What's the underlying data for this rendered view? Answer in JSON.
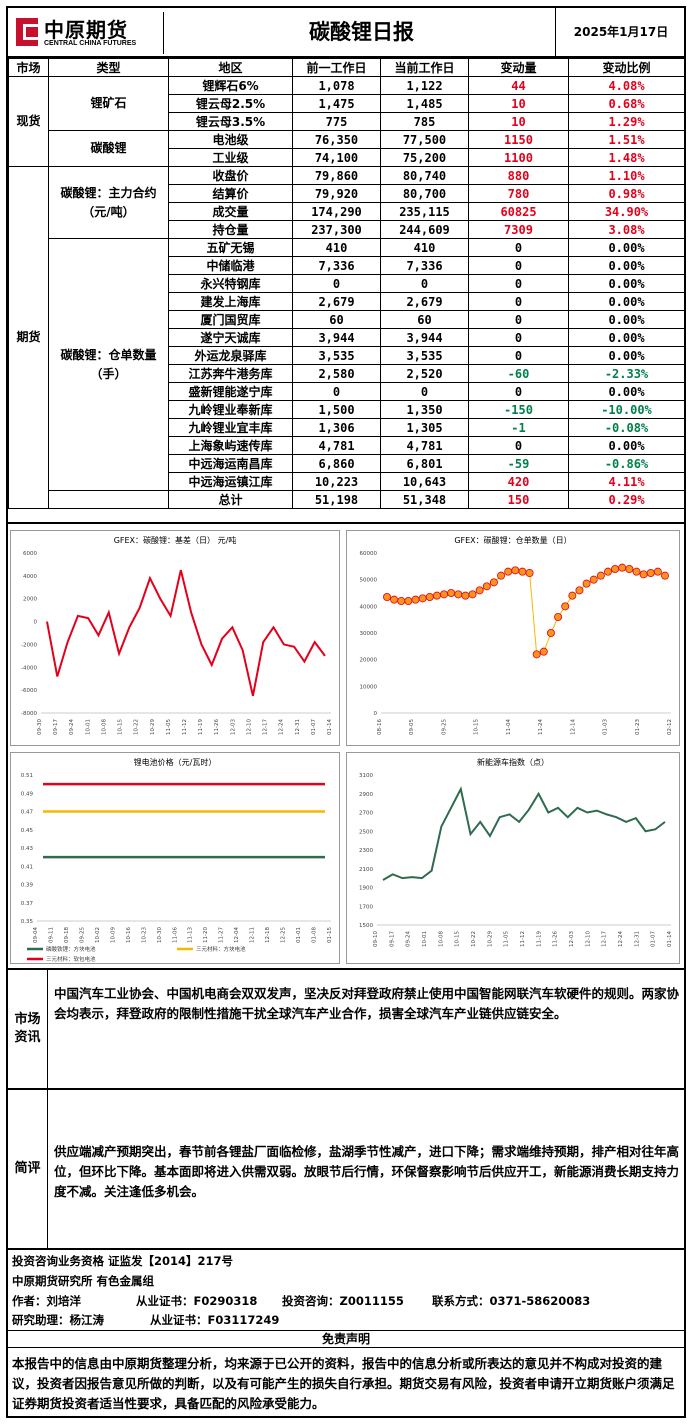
{
  "header": {
    "logo_cn": "中原期货",
    "logo_en": "CENTRAL CHINA FUTURES",
    "title": "碳酸锂日报",
    "date": "2025年1月17日"
  },
  "table": {
    "columns": [
      "市场",
      "类型",
      "地区",
      "前一工作日",
      "当前工作日",
      "变动量",
      "变动比例"
    ],
    "markets": {
      "spot": "现货",
      "futures": "期货"
    },
    "groups": {
      "ore": "锂矿石",
      "carbonate": "碳酸锂",
      "main_contract": "碳酸锂：主力合约（元/吨）",
      "warehouse": "碳酸锂：仓单数量（手）"
    },
    "rows": [
      {
        "loc": "锂辉石6%",
        "prev": "1,078",
        "curr": "1,122",
        "chg": "44",
        "pct": "4.08%",
        "dir": "up"
      },
      {
        "loc": "锂云母2.5%",
        "prev": "1,475",
        "curr": "1,485",
        "chg": "10",
        "pct": "0.68%",
        "dir": "up"
      },
      {
        "loc": "锂云母3.5%",
        "prev": "775",
        "curr": "785",
        "chg": "10",
        "pct": "1.29%",
        "dir": "up"
      },
      {
        "loc": "电池级",
        "prev": "76,350",
        "curr": "77,500",
        "chg": "1150",
        "pct": "1.51%",
        "dir": "up"
      },
      {
        "loc": "工业级",
        "prev": "74,100",
        "curr": "75,200",
        "chg": "1100",
        "pct": "1.48%",
        "dir": "up"
      },
      {
        "loc": "收盘价",
        "prev": "79,860",
        "curr": "80,740",
        "chg": "880",
        "pct": "1.10%",
        "dir": "up"
      },
      {
        "loc": "结算价",
        "prev": "79,920",
        "curr": "80,700",
        "chg": "780",
        "pct": "0.98%",
        "dir": "up"
      },
      {
        "loc": "成交量",
        "prev": "174,290",
        "curr": "235,115",
        "chg": "60825",
        "pct": "34.90%",
        "dir": "up"
      },
      {
        "loc": "持仓量",
        "prev": "237,300",
        "curr": "244,609",
        "chg": "7309",
        "pct": "3.08%",
        "dir": "up"
      },
      {
        "loc": "五矿无锡",
        "prev": "410",
        "curr": "410",
        "chg": "0",
        "pct": "0.00%",
        "dir": "flat"
      },
      {
        "loc": "中储临港",
        "prev": "7,336",
        "curr": "7,336",
        "chg": "0",
        "pct": "0.00%",
        "dir": "flat"
      },
      {
        "loc": "永兴特钢库",
        "prev": "0",
        "curr": "0",
        "chg": "0",
        "pct": "0.00%",
        "dir": "flat"
      },
      {
        "loc": "建发上海库",
        "prev": "2,679",
        "curr": "2,679",
        "chg": "0",
        "pct": "0.00%",
        "dir": "flat"
      },
      {
        "loc": "厦门国贸库",
        "prev": "60",
        "curr": "60",
        "chg": "0",
        "pct": "0.00%",
        "dir": "flat"
      },
      {
        "loc": "遂宁天诚库",
        "prev": "3,944",
        "curr": "3,944",
        "chg": "0",
        "pct": "0.00%",
        "dir": "flat"
      },
      {
        "loc": "外运龙泉驿库",
        "prev": "3,535",
        "curr": "3,535",
        "chg": "0",
        "pct": "0.00%",
        "dir": "flat"
      },
      {
        "loc": "江苏奔牛港务库",
        "prev": "2,580",
        "curr": "2,520",
        "chg": "-60",
        "pct": "-2.33%",
        "dir": "down"
      },
      {
        "loc": "盛新锂能遂宁库",
        "prev": "0",
        "curr": "0",
        "chg": "0",
        "pct": "0.00%",
        "dir": "flat"
      },
      {
        "loc": "九岭锂业奉新库",
        "prev": "1,500",
        "curr": "1,350",
        "chg": "-150",
        "pct": "-10.00%",
        "dir": "down"
      },
      {
        "loc": "九岭锂业宜丰库",
        "prev": "1,306",
        "curr": "1,305",
        "chg": "-1",
        "pct": "-0.08%",
        "dir": "down"
      },
      {
        "loc": "上海象屿速传库",
        "prev": "4,781",
        "curr": "4,781",
        "chg": "0",
        "pct": "0.00%",
        "dir": "flat"
      },
      {
        "loc": "中远海运南昌库",
        "prev": "6,860",
        "curr": "6,801",
        "chg": "-59",
        "pct": "-0.86%",
        "dir": "down"
      },
      {
        "loc": "中远海运镇江库",
        "prev": "10,223",
        "curr": "10,643",
        "chg": "420",
        "pct": "4.11%",
        "dir": "up"
      },
      {
        "loc": "总计",
        "prev": "51,198",
        "curr": "51,348",
        "chg": "150",
        "pct": "0.29%",
        "dir": "up"
      }
    ]
  },
  "colors": {
    "up": "#e4001b",
    "down": "#00804a",
    "basis_line": "#e4001b",
    "receipt_marker": "#f7941d",
    "index_line": "#2e6b4f"
  },
  "chart_data": [
    {
      "type": "line",
      "title": "GFEX：碳酸锂：基差（日） 元/吨",
      "x": [
        "09-30",
        "10-04",
        "10-08",
        "10-12",
        "10-16",
        "10-20",
        "10-24",
        "10-28",
        "11-01",
        "11-05",
        "11-09",
        "11-13",
        "11-17",
        "11-21",
        "11-25",
        "11-29",
        "12-03",
        "12-07",
        "12-11",
        "12-15",
        "12-19",
        "12-23",
        "12-27",
        "12-31",
        "01-04",
        "01-08",
        "01-12",
        "01-15"
      ],
      "x_tick_labels": [
        "09-30",
        "09-17",
        "09-24",
        "10-01",
        "10-08",
        "10-15",
        "10-22",
        "10-29",
        "11-05",
        "11-12",
        "11-19",
        "11-26",
        "12-03",
        "12-10",
        "12-17",
        "12-24",
        "12-31",
        "01-07",
        "01-14"
      ],
      "series": [
        {
          "values": [
            0,
            -4800,
            -1800,
            500,
            300,
            -1200,
            800,
            -2800,
            -500,
            1200,
            3800,
            2000,
            500,
            4500,
            800,
            -2000,
            -3800,
            -1500,
            -500,
            -2500,
            -6500,
            -1800,
            -500,
            -2000,
            -2200,
            -3500,
            -1800,
            -3000
          ]
        }
      ],
      "ylim": [
        -8000,
        6000
      ],
      "yticks": [
        6000,
        4000,
        2000,
        0,
        -2000,
        -4000,
        -6000,
        -8000
      ],
      "grid": false,
      "legend": "none"
    },
    {
      "type": "scatter",
      "title": "GFEX：碳酸锂：仓单数量（日）",
      "x": [
        "09-06",
        "09-10",
        "09-14",
        "09-18",
        "09-22",
        "09-26",
        "09-30",
        "10-04",
        "10-08",
        "10-12",
        "10-16",
        "10-20",
        "10-24",
        "10-28",
        "11-01",
        "11-05",
        "11-09",
        "11-13",
        "11-17",
        "11-21",
        "11-25",
        "11-27",
        "11-29",
        "12-01",
        "12-03",
        "12-05",
        "12-08",
        "12-11",
        "12-14",
        "12-17",
        "12-20",
        "12-23",
        "12-26",
        "12-29",
        "01-01",
        "01-04",
        "01-07",
        "01-10",
        "01-13",
        "01-16"
      ],
      "x_tick_labels": [
        "08-16",
        "09-05",
        "09-25",
        "10-15",
        "11-04",
        "11-24",
        "12-14",
        "01-03",
        "01-23",
        "02-12"
      ],
      "series": [
        {
          "values": [
            43500,
            42500,
            42000,
            42000,
            42500,
            43000,
            43500,
            44000,
            44500,
            45000,
            44500,
            44000,
            44500,
            46000,
            47500,
            49000,
            51500,
            53000,
            53500,
            53000,
            52500,
            22000,
            23000,
            30000,
            36000,
            40000,
            44000,
            46000,
            48500,
            50000,
            51500,
            53000,
            54000,
            54500,
            54000,
            53000,
            52000,
            52500,
            53000,
            51500
          ]
        }
      ],
      "ylim": [
        0,
        60000
      ],
      "yticks": [
        60000,
        50000,
        40000,
        30000,
        20000,
        10000,
        0
      ],
      "grid": false,
      "legend": "none"
    },
    {
      "type": "line",
      "title": "锂电池价格（元/瓦时）",
      "x_tick_labels": [
        "09-04",
        "09-11",
        "09-18",
        "09-25",
        "10-02",
        "10-09",
        "10-16",
        "10-23",
        "10-30",
        "11-06",
        "11-13",
        "11-20",
        "11-27",
        "12-04",
        "12-11",
        "12-18",
        "12-25",
        "01-01",
        "01-08",
        "01-15"
      ],
      "series": [
        {
          "name": "磷酸铁锂：方块电池",
          "values": [
            0.42,
            0.42
          ],
          "color": "#2e6b4f"
        },
        {
          "name": "三元材料：方块电池",
          "values": [
            0.47,
            0.47
          ],
          "color": "#f5b800"
        },
        {
          "name": "三元材料：软包电池",
          "values": [
            0.5,
            0.5
          ],
          "color": "#e4001b"
        }
      ],
      "ylim": [
        0.35,
        0.51
      ],
      "yticks": [
        0.51,
        0.49,
        0.47,
        0.45,
        0.43,
        0.41,
        0.39,
        0.37,
        0.35
      ],
      "grid": false,
      "legend": "bottom"
    },
    {
      "type": "line",
      "title": "新能源车指数（点）",
      "x_tick_labels": [
        "09-10",
        "09-17",
        "09-24",
        "10-01",
        "10-08",
        "10-15",
        "10-22",
        "10-29",
        "11-05",
        "11-12",
        "11-19",
        "11-26",
        "12-03",
        "12-10",
        "12-17",
        "12-24",
        "12-31",
        "01-07",
        "01-14"
      ],
      "series": [
        {
          "values": [
            1980,
            2040,
            2000,
            2010,
            2000,
            2080,
            2550,
            2750,
            2950,
            2470,
            2600,
            2450,
            2650,
            2680,
            2600,
            2730,
            2900,
            2700,
            2750,
            2650,
            2750,
            2700,
            2720,
            2680,
            2650,
            2600,
            2640,
            2500,
            2520,
            2600
          ]
        }
      ],
      "ylim": [
        1500,
        3100
      ],
      "yticks": [
        3100,
        2900,
        2700,
        2500,
        2300,
        2100,
        1900,
        1700,
        1500
      ],
      "grid": false,
      "legend": "none"
    }
  ],
  "sections": {
    "market_info_label": "市场资讯",
    "market_info_text": "中国汽车工业协会、中国机电商会双双发声，坚决反对拜登政府禁止使用中国智能网联汽车软硬件的规则。两家协会均表示，拜登政府的限制性措施干扰全球汽车产业合作，损害全球汽车产业链供应链安全。",
    "comment_label": "简评",
    "comment_text": "供应端减产预期突出，春节前各锂盐厂面临检修，盐湖季节性减产，进口下降；需求端维持预期，排产相对往年高位，但环比下降。基本面即将进入供需双弱。放眼节后行情，环保督察影响节后供应开工，新能源消费长期支持力度不减。关注逢低多机会。"
  },
  "info": {
    "line1": "投资咨询业务资格  证监发【2014】217号",
    "line2": "中原期货研究所  有色金属组",
    "author": "作者：刘培洋",
    "cert1": "从业证书：F0290318",
    "consult": "投资咨询：Z0011155",
    "contact": "联系方式：0371-58620083",
    "assistant": "研究助理：杨江涛",
    "cert2": "从业证书：F03117249"
  },
  "disclaimer": {
    "title": "免责声明",
    "text": "本报告中的信息由中原期货整理分析，均来源于已公开的资料，报告中的信息分析或所表达的意见并不构成对投资的建议，投资者因报告意见所做的判断，以及有可能产生的损失自行承担。期货交易有风险，投资者申请开立期货账户须满足证券期货投资者适当性要求，具备匹配的风险承受能力。"
  }
}
